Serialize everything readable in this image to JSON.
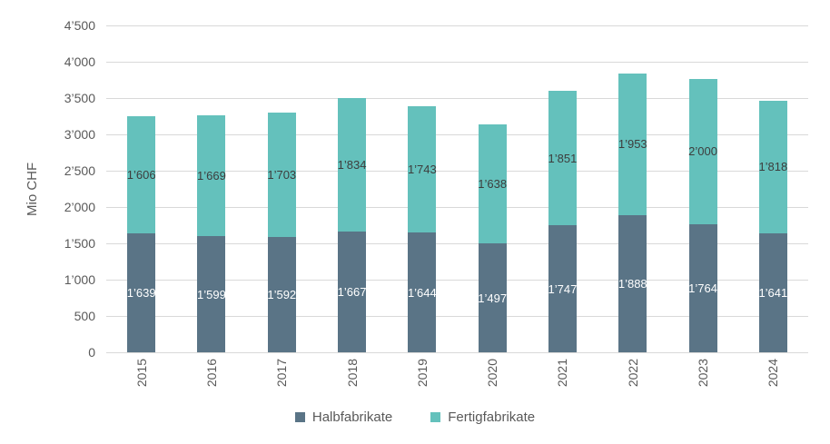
{
  "chart_data": {
    "type": "bar",
    "stacked": true,
    "title": "",
    "ylabel": "Mio CHF",
    "xlabel": "",
    "ylim": [
      0,
      4500
    ],
    "y_tick_step": 500,
    "y_tick_labels": [
      "0",
      "500",
      "1’000",
      "1’500",
      "2’000",
      "2’500",
      "3’000",
      "3’500",
      "4’000",
      "4’500"
    ],
    "grid": true,
    "legend_position": "bottom",
    "number_format": "swiss-apostrophe",
    "categories": [
      "2015",
      "2016",
      "2017",
      "2018",
      "2019",
      "2020",
      "2021",
      "2022",
      "2023",
      "2024"
    ],
    "series": [
      {
        "name": "Halbfabrikate",
        "color": "#5a7486",
        "label_color": "#ffffff",
        "values": [
          1639,
          1599,
          1592,
          1667,
          1644,
          1497,
          1747,
          1888,
          1764,
          1641
        ],
        "value_labels": [
          "1’639",
          "1’599",
          "1’592",
          "1’667",
          "1’644",
          "1’497",
          "1’747",
          "1’888",
          "1’764",
          "1’641"
        ]
      },
      {
        "name": "Fertigfabrikate",
        "color": "#64c1bc",
        "label_color": "#3d3d3d",
        "values": [
          1606,
          1669,
          1703,
          1834,
          1743,
          1638,
          1851,
          1953,
          2000,
          1818
        ],
        "value_labels": [
          "1’606",
          "1’669",
          "1’703",
          "1’834",
          "1’743",
          "1’638",
          "1’851",
          "1’953",
          "2’000",
          "1’818"
        ]
      }
    ]
  },
  "styles": {
    "gridline_color": "#d9d9d9",
    "axis_text_color": "#595959",
    "background": "#ffffff"
  }
}
